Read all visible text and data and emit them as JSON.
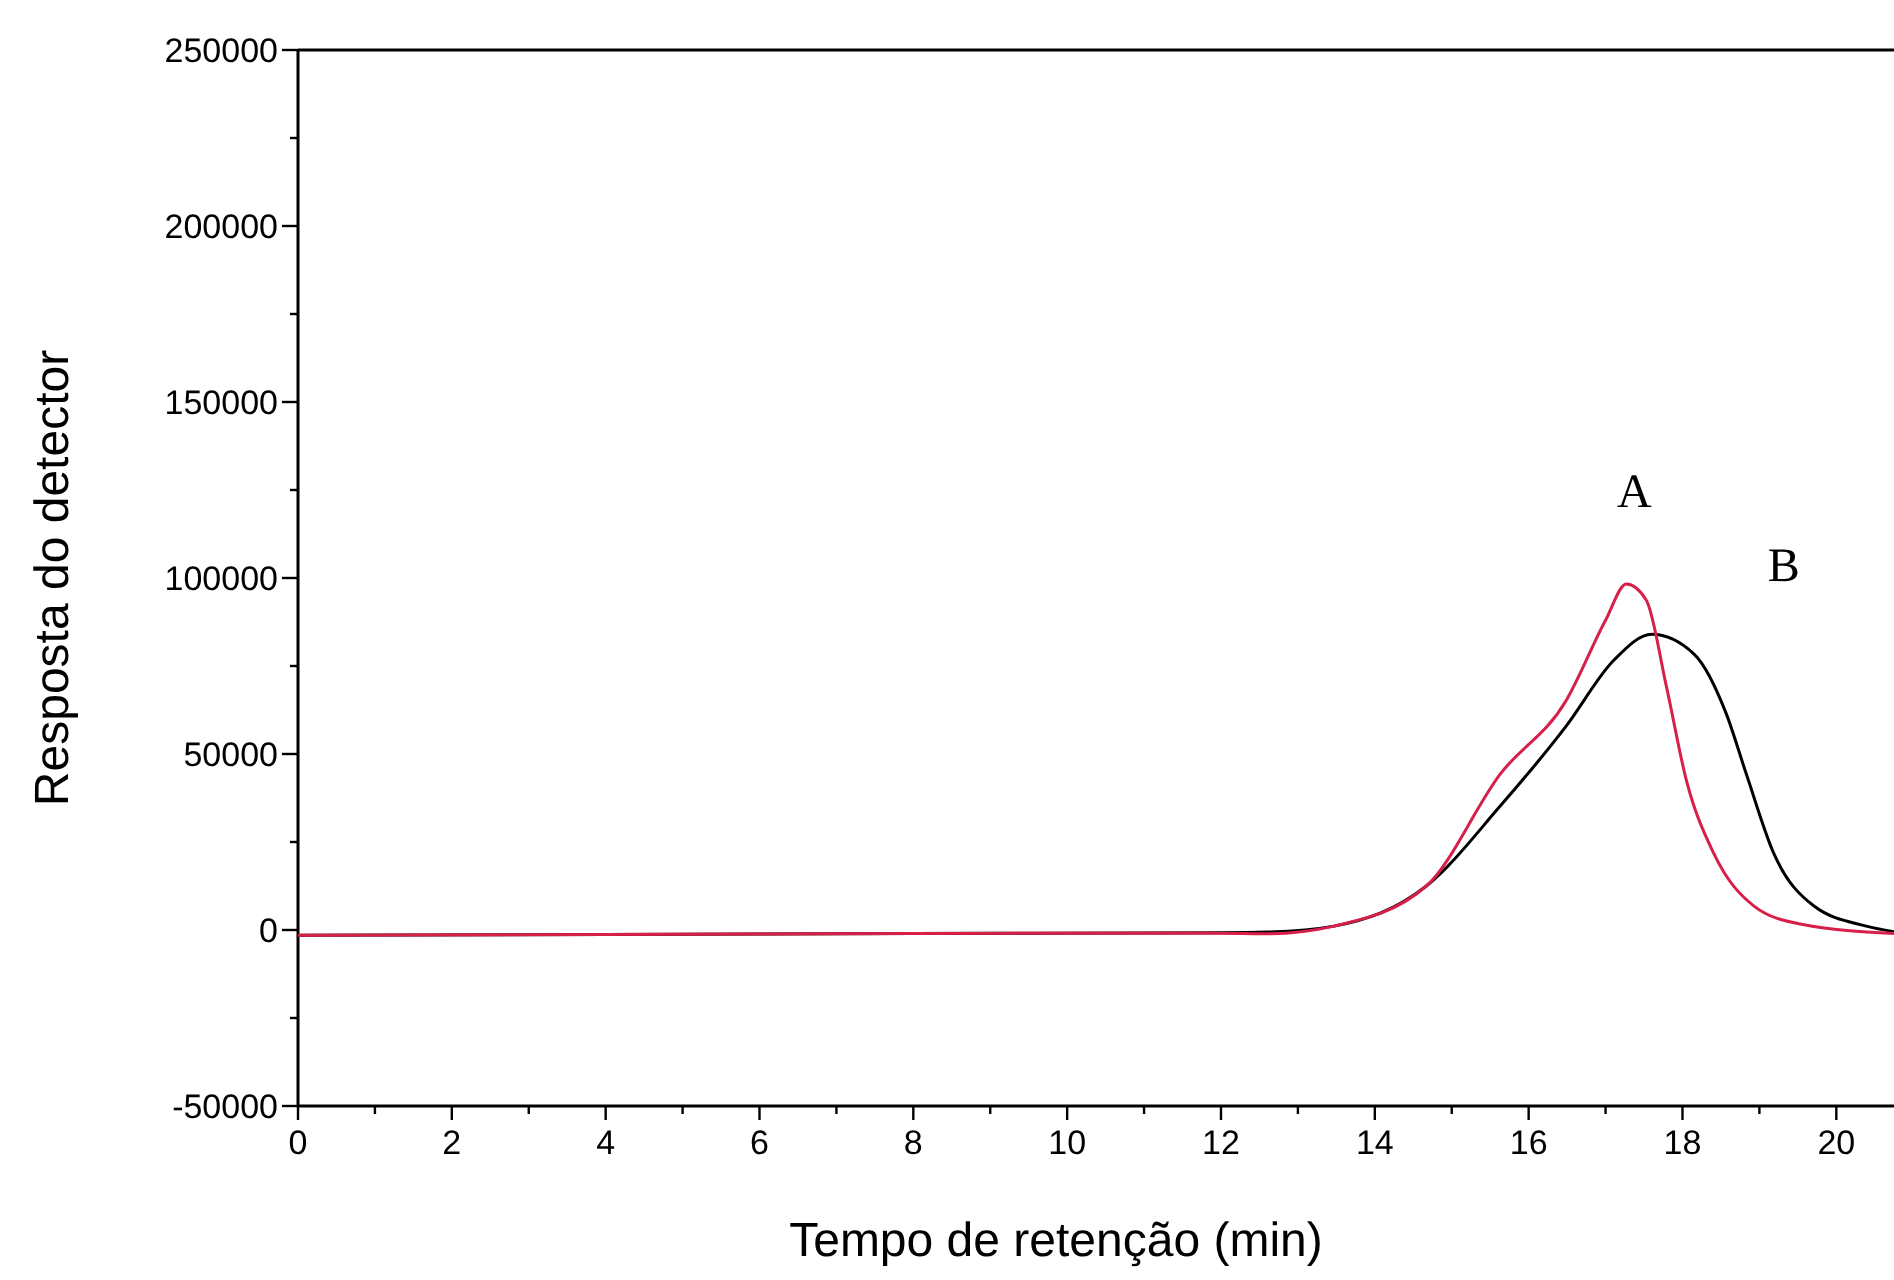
{
  "chart_data": {
    "type": "line",
    "xlabel": "Tempo de retenção (min)",
    "ylabel": "Resposta do detector",
    "xlim": [
      0,
      20.75
    ],
    "ylim": [
      -50000,
      250000
    ],
    "xticks": [
      0,
      {
        "value": 1,
        "label": null
      },
      2,
      {
        "value": 3,
        "label": null
      },
      4,
      {
        "value": 5,
        "label": null
      },
      6,
      {
        "value": 7,
        "label": null
      },
      8,
      {
        "value": 9,
        "label": null
      },
      10,
      {
        "value": 11,
        "label": null
      },
      12,
      {
        "value": 13,
        "label": null
      },
      14,
      {
        "value": 15,
        "label": null
      },
      16,
      {
        "value": 17,
        "label": null
      },
      18,
      {
        "value": 19,
        "label": null
      },
      20
    ],
    "yticks": [
      -50000,
      {
        "value": -25000,
        "label": null
      },
      0,
      {
        "value": 25000,
        "label": null
      },
      50000,
      {
        "value": 75000,
        "label": null
      },
      100000,
      {
        "value": 125000,
        "label": null
      },
      150000,
      {
        "value": 175000,
        "label": null
      },
      200000,
      {
        "value": 225000,
        "label": null
      },
      250000
    ],
    "grid": false,
    "marker": "none",
    "line_style": "solid",
    "series": [
      {
        "name": "B",
        "color": "#000000",
        "x": [
          0,
          4,
          8,
          12,
          12.6,
          13.47,
          14.67,
          15.63,
          16.49,
          17.11,
          17.6,
          18.15,
          18.57,
          18.83,
          19.19,
          19.71,
          20.39,
          20.75
        ],
        "values": [
          -1500,
          -1300,
          -1000,
          -800,
          -600,
          1100,
          12500,
          35200,
          58000,
          76700,
          84000,
          78400,
          61400,
          44300,
          21600,
          6800,
          1100,
          -500
        ]
      },
      {
        "name": "A",
        "color": "#d6204a",
        "x": [
          0,
          4,
          8,
          12,
          12.6,
          13.47,
          14.67,
          15.63,
          16.49,
          17.0,
          17.27,
          17.53,
          17.79,
          18.05,
          18.41,
          18.93,
          19.53,
          20.75
        ],
        "values": [
          -1500,
          -1300,
          -1000,
          -900,
          -1100,
          1100,
          12500,
          44300,
          65300,
          88000,
          98300,
          93700,
          69300,
          42600,
          21600,
          6800,
          1700,
          -1000
        ]
      }
    ]
  }
}
